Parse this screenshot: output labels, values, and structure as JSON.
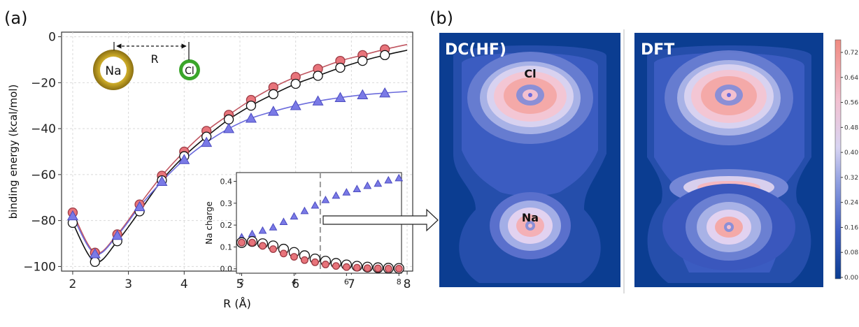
{
  "panel_labels": {
    "a": "(a)",
    "b": "(b)"
  },
  "chart_data": [
    {
      "type": "line",
      "xlabel": "R (Å)",
      "ylabel": "binding energy (kcal/mol)",
      "xlim": [
        1.8,
        8.1
      ],
      "ylim": [
        -102,
        2
      ],
      "xticks": [
        2,
        3,
        4,
        5,
        6,
        7,
        8
      ],
      "yticks": [
        0,
        -20,
        -40,
        -60,
        -80,
        -100
      ],
      "grid": true,
      "schematic": {
        "atom1": "Na",
        "atom2": "Cl",
        "distance_label": "R"
      },
      "series": [
        {
          "color": "#c05560",
          "marker": "circle-red",
          "x": [
            2.0,
            2.4,
            2.8,
            3.2,
            3.6,
            4.0,
            4.4,
            4.8,
            5.2,
            5.6,
            6.0,
            6.4,
            6.8,
            7.2,
            7.6
          ],
          "y": [
            -76.5,
            -94.0,
            -86.0,
            -73.0,
            -60.5,
            -50.0,
            -41.0,
            -34.0,
            -27.5,
            -22.0,
            -17.5,
            -14.0,
            -10.5,
            -8.0,
            -5.5
          ]
        },
        {
          "color": "#111111",
          "marker": "circle-open",
          "x": [
            2.0,
            2.4,
            2.8,
            3.2,
            3.6,
            4.0,
            4.4,
            4.8,
            5.2,
            5.6,
            6.0,
            6.4,
            6.8,
            7.2,
            7.6
          ],
          "y": [
            -81.0,
            -98.0,
            -89.0,
            -76.0,
            -62.5,
            -52.0,
            -43.5,
            -36.0,
            -30.0,
            -25.0,
            -20.5,
            -17.0,
            -13.5,
            -10.5,
            -8.0
          ]
        },
        {
          "color": "#6b6bdc",
          "marker": "triangle-blue",
          "x": [
            2.0,
            2.4,
            2.8,
            3.2,
            3.6,
            4.0,
            4.4,
            4.8,
            5.2,
            5.6,
            6.0,
            6.4,
            6.8,
            7.2,
            7.6
          ],
          "y": [
            -78.0,
            -94.5,
            -86.5,
            -74.0,
            -63.0,
            -53.5,
            -46.0,
            -40.0,
            -35.5,
            -32.5,
            -30.0,
            -28.0,
            -26.5,
            -25.3,
            -24.5
          ]
        }
      ]
    },
    {
      "type": "line",
      "ylabel": "Na charge",
      "xlim": [
        1.8,
        8.1
      ],
      "ylim": [
        -0.02,
        0.44
      ],
      "xticks": [
        2,
        4,
        6,
        8
      ],
      "yticks": [
        0.0,
        0.1,
        0.2,
        0.3,
        0.4
      ],
      "xtick_labels": [
        "2",
        "4",
        "6",
        "8"
      ],
      "ytick_labels": [
        "0.0",
        "0.1",
        "0.2",
        "0.3",
        "0.4"
      ],
      "vline_x": 5.0,
      "series": [
        {
          "color": "#6b6bdc",
          "marker": "triangle-blue",
          "x": [
            2.0,
            2.4,
            2.8,
            3.2,
            3.6,
            4.0,
            4.4,
            4.8,
            5.2,
            5.6,
            6.0,
            6.4,
            6.8,
            7.2,
            7.6,
            8.0
          ],
          "y": [
            0.145,
            0.16,
            0.175,
            0.19,
            0.215,
            0.24,
            0.265,
            0.29,
            0.315,
            0.335,
            0.35,
            0.365,
            0.38,
            0.39,
            0.405,
            0.415
          ]
        },
        {
          "color": "#111111",
          "marker": "circle-open",
          "x": [
            2.0,
            2.4,
            2.8,
            3.2,
            3.6,
            4.0,
            4.4,
            4.8,
            5.2,
            5.6,
            6.0,
            6.4,
            6.8,
            7.2,
            7.6,
            8.0
          ],
          "y": [
            0.12,
            0.125,
            0.115,
            0.105,
            0.09,
            0.075,
            0.06,
            0.045,
            0.035,
            0.025,
            0.018,
            0.012,
            0.008,
            0.005,
            0.003,
            0.002
          ]
        },
        {
          "color": "#c05560",
          "marker": "circle-red",
          "x": [
            2.0,
            2.4,
            2.8,
            3.2,
            3.6,
            4.0,
            4.4,
            4.8,
            5.2,
            5.6,
            6.0,
            6.4,
            6.8,
            7.2,
            7.6,
            8.0
          ],
          "y": [
            0.12,
            0.12,
            0.105,
            0.09,
            0.07,
            0.055,
            0.04,
            0.03,
            0.02,
            0.013,
            0.008,
            0.005,
            0.003,
            0.002,
            0.001,
            0.001
          ]
        }
      ]
    },
    {
      "type": "heatmap",
      "panels": [
        {
          "title": "DC(HF)",
          "atom_labels": [
            "Cl",
            "Na"
          ]
        },
        {
          "title": "DFT"
        }
      ],
      "colorbar_ticks": [
        "0.72",
        "0.64",
        "0.56",
        "0.48",
        "0.40",
        "0.32",
        "0.24",
        "0.16",
        "0.08",
        "0.00"
      ],
      "colormap": [
        "#0b3d91",
        "#3f5fc4",
        "#8e9ee0",
        "#d8d4f2",
        "#f3c0d0",
        "#f08a80"
      ]
    }
  ]
}
